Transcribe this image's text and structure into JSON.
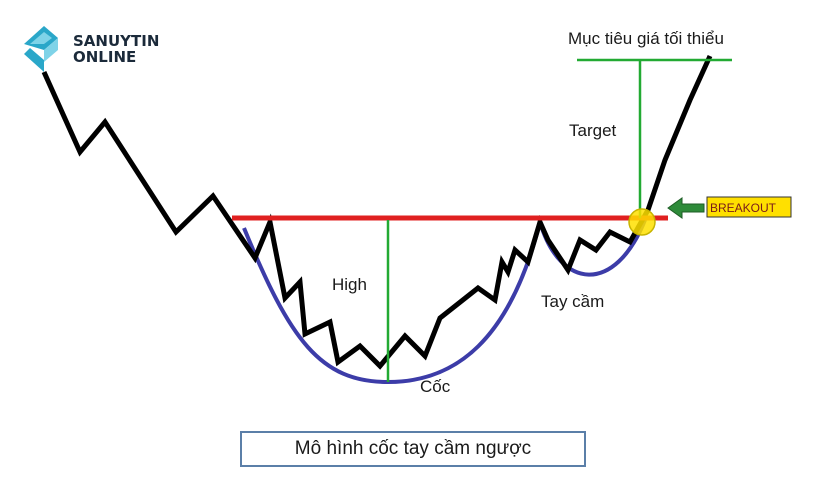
{
  "brand": {
    "line1": "SANUYTIN",
    "line2": "ONLINE",
    "colors": {
      "arrow_light": "#7fd3e8",
      "arrow_dark": "#2aa7c9",
      "text": "#1b2a3a"
    }
  },
  "labels": {
    "target_min": "Mục tiêu giá tối thiểu",
    "target": "Target",
    "high": "High",
    "cup": "Cốc",
    "handle": "Tay cầm",
    "breakout": "BREAKOUT"
  },
  "caption": "Mô hình cốc tay cầm ngược",
  "colors": {
    "price_line": "#000000",
    "resistance_line": "#e02020",
    "measure_line": "#22aa33",
    "cup_curve": "#3c3ca8",
    "breakout_fill": "#ffe000",
    "breakout_arrow": "#2e8b3a",
    "caption_border": "#5b7fa8"
  },
  "icons": {
    "logo": "diamond-arrow-icon",
    "breakout_pointer": "left-arrow-icon",
    "breakout_marker": "circle-marker-icon"
  }
}
